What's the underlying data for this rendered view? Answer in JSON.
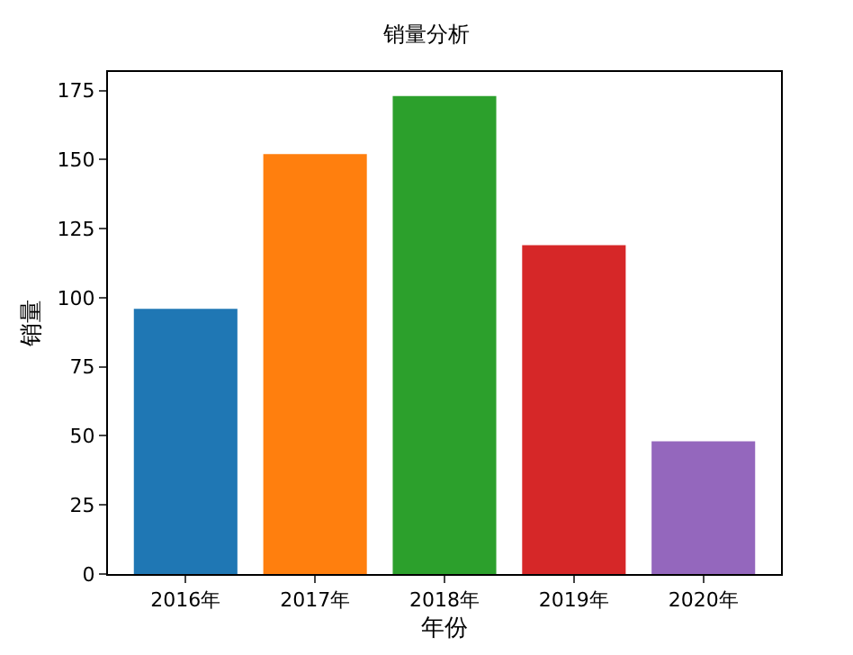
{
  "chart_data": {
    "type": "bar",
    "title": "销量分析",
    "xlabel": "年份",
    "ylabel": "销量",
    "categories": [
      "2016年",
      "2017年",
      "2018年",
      "2019年",
      "2020年"
    ],
    "values": [
      96,
      152,
      173,
      119,
      48
    ],
    "colors": [
      "#1f77b4",
      "#ff7f0e",
      "#2ca02c",
      "#d62728",
      "#9467bd"
    ],
    "ylim": [
      0,
      181.7
    ],
    "yticks": [
      0,
      25,
      50,
      75,
      100,
      125,
      150,
      175
    ]
  }
}
